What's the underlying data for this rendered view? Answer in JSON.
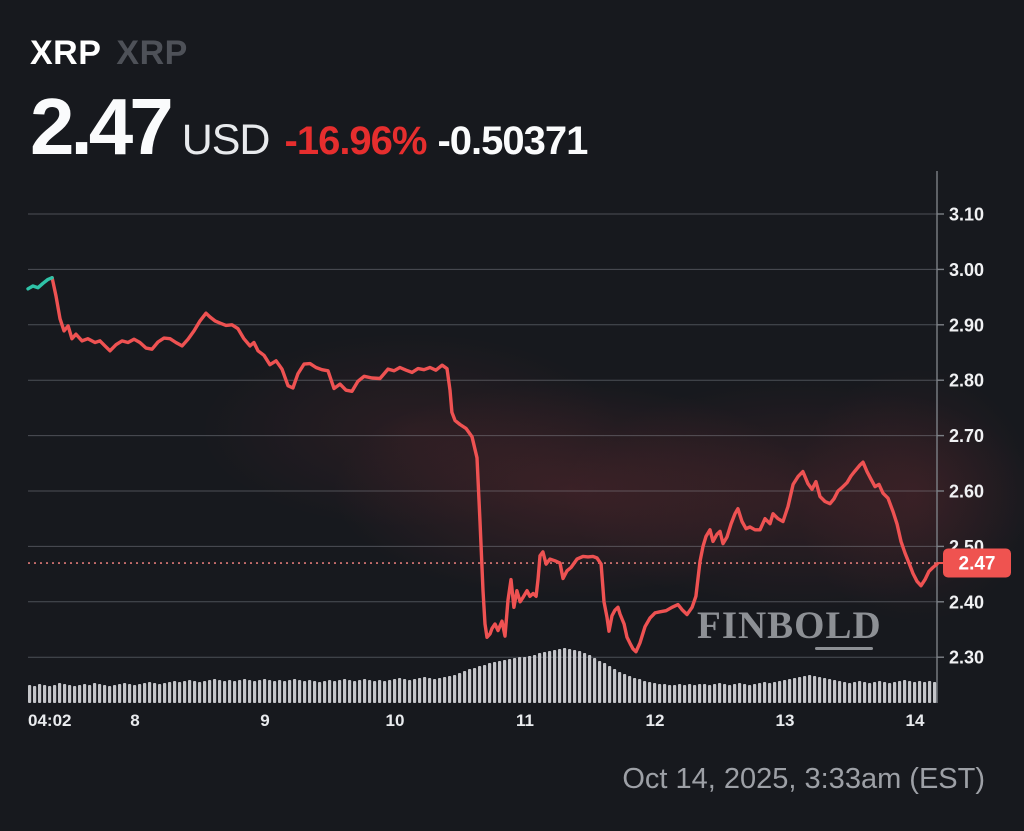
{
  "header": {
    "symbol": "XRP",
    "name": "XRP",
    "price": "2.47",
    "currency": "USD",
    "change_percent": "-16.96%",
    "change_abs": "-0.50371"
  },
  "watermark": {
    "text": "FINBOLD"
  },
  "footer": {
    "timestamp": "Oct 14, 2025, 3:33am (EST)"
  },
  "colors": {
    "background": "#17191e",
    "line_down": "#ee5252",
    "line_up": "#2fc3a8",
    "change_red": "#e62e2e",
    "badge_red": "#ef5350",
    "volume_bar": "#cdcfd3",
    "grid": "#9ea3ab",
    "muted_text": "#9da0a6"
  },
  "chart_data": {
    "type": "line",
    "title": "XRP/USD 7-day price chart",
    "legend": "none",
    "grid": true,
    "x_axis": {
      "unit": "day of October 2025",
      "ticks": [
        {
          "label": "04:02",
          "day": 7.177,
          "anchor": "start"
        },
        {
          "label": "8",
          "day": 8
        },
        {
          "label": "9",
          "day": 9
        },
        {
          "label": "10",
          "day": 10
        },
        {
          "label": "11",
          "day": 11
        },
        {
          "label": "12",
          "day": 12
        },
        {
          "label": "13",
          "day": 13
        },
        {
          "label": "14",
          "day": 14
        }
      ],
      "range_days": [
        7.177,
        14.169
      ]
    },
    "y_axis": {
      "side": "right",
      "ticks": [
        {
          "value": 3.1,
          "label": "3.10"
        },
        {
          "value": 3.0,
          "label": "3.00"
        },
        {
          "value": 2.9,
          "label": "2.90"
        },
        {
          "value": 2.8,
          "label": "2.80"
        },
        {
          "value": 2.7,
          "label": "2.70"
        },
        {
          "value": 2.6,
          "label": "2.60"
        },
        {
          "value": 2.5,
          "label": "2.50"
        },
        {
          "value": 2.4,
          "label": "2.40"
        },
        {
          "value": 2.3,
          "label": "2.30"
        }
      ],
      "range": [
        2.25,
        3.175
      ]
    },
    "current_price": 2.47,
    "current_price_label": "2.47",
    "series": [
      {
        "name": "XRP/USD",
        "up_segment_until_day": 7.362,
        "points": [
          [
            7.177,
            2.965
          ],
          [
            7.215,
            2.97
          ],
          [
            7.254,
            2.967
          ],
          [
            7.292,
            2.975
          ],
          [
            7.331,
            2.982
          ],
          [
            7.362,
            2.985
          ],
          [
            7.392,
            2.952
          ],
          [
            7.423,
            2.911
          ],
          [
            7.454,
            2.889
          ],
          [
            7.485,
            2.898
          ],
          [
            7.515,
            2.875
          ],
          [
            7.546,
            2.883
          ],
          [
            7.592,
            2.871
          ],
          [
            7.638,
            2.875
          ],
          [
            7.692,
            2.868
          ],
          [
            7.731,
            2.871
          ],
          [
            7.769,
            2.862
          ],
          [
            7.808,
            2.853
          ],
          [
            7.854,
            2.864
          ],
          [
            7.9,
            2.871
          ],
          [
            7.946,
            2.868
          ],
          [
            7.992,
            2.874
          ],
          [
            8.038,
            2.868
          ],
          [
            8.085,
            2.858
          ],
          [
            8.131,
            2.856
          ],
          [
            8.177,
            2.869
          ],
          [
            8.223,
            2.876
          ],
          [
            8.269,
            2.875
          ],
          [
            8.315,
            2.868
          ],
          [
            8.362,
            2.862
          ],
          [
            8.408,
            2.874
          ],
          [
            8.454,
            2.889
          ],
          [
            8.5,
            2.907
          ],
          [
            8.546,
            2.921
          ],
          [
            8.577,
            2.914
          ],
          [
            8.615,
            2.907
          ],
          [
            8.654,
            2.903
          ],
          [
            8.7,
            2.899
          ],
          [
            8.746,
            2.9
          ],
          [
            8.792,
            2.893
          ],
          [
            8.838,
            2.875
          ],
          [
            8.885,
            2.862
          ],
          [
            8.915,
            2.868
          ],
          [
            8.946,
            2.853
          ],
          [
            8.992,
            2.845
          ],
          [
            9.038,
            2.828
          ],
          [
            9.085,
            2.835
          ],
          [
            9.131,
            2.82
          ],
          [
            9.177,
            2.79
          ],
          [
            9.215,
            2.786
          ],
          [
            9.254,
            2.812
          ],
          [
            9.3,
            2.829
          ],
          [
            9.346,
            2.83
          ],
          [
            9.392,
            2.823
          ],
          [
            9.438,
            2.819
          ],
          [
            9.485,
            2.817
          ],
          [
            9.531,
            2.785
          ],
          [
            9.577,
            2.793
          ],
          [
            9.623,
            2.782
          ],
          [
            9.669,
            2.78
          ],
          [
            9.715,
            2.798
          ],
          [
            9.762,
            2.807
          ],
          [
            9.823,
            2.804
          ],
          [
            9.885,
            2.803
          ],
          [
            9.946,
            2.82
          ],
          [
            9.992,
            2.817
          ],
          [
            10.038,
            2.823
          ],
          [
            10.085,
            2.818
          ],
          [
            10.131,
            2.814
          ],
          [
            10.177,
            2.821
          ],
          [
            10.223,
            2.819
          ],
          [
            10.269,
            2.823
          ],
          [
            10.315,
            2.818
          ],
          [
            10.362,
            2.827
          ],
          [
            10.4,
            2.821
          ],
          [
            10.423,
            2.782
          ],
          [
            10.438,
            2.742
          ],
          [
            10.462,
            2.727
          ],
          [
            10.5,
            2.72
          ],
          [
            10.546,
            2.713
          ],
          [
            10.592,
            2.698
          ],
          [
            10.631,
            2.66
          ],
          [
            10.654,
            2.545
          ],
          [
            10.677,
            2.42
          ],
          [
            10.692,
            2.36
          ],
          [
            10.708,
            2.336
          ],
          [
            10.731,
            2.342
          ],
          [
            10.746,
            2.352
          ],
          [
            10.769,
            2.36
          ],
          [
            10.792,
            2.348
          ],
          [
            10.823,
            2.365
          ],
          [
            10.846,
            2.338
          ],
          [
            10.869,
            2.403
          ],
          [
            10.892,
            2.44
          ],
          [
            10.915,
            2.39
          ],
          [
            10.938,
            2.42
          ],
          [
            10.962,
            2.4
          ],
          [
            10.985,
            2.408
          ],
          [
            11.015,
            2.42
          ],
          [
            11.038,
            2.41
          ],
          [
            11.062,
            2.415
          ],
          [
            11.085,
            2.41
          ],
          [
            11.1,
            2.44
          ],
          [
            11.115,
            2.483
          ],
          [
            11.138,
            2.49
          ],
          [
            11.162,
            2.468
          ],
          [
            11.192,
            2.477
          ],
          [
            11.231,
            2.474
          ],
          [
            11.269,
            2.47
          ],
          [
            11.292,
            2.442
          ],
          [
            11.323,
            2.456
          ],
          [
            11.354,
            2.462
          ],
          [
            11.4,
            2.477
          ],
          [
            11.446,
            2.482
          ],
          [
            11.485,
            2.481
          ],
          [
            11.523,
            2.482
          ],
          [
            11.554,
            2.479
          ],
          [
            11.585,
            2.468
          ],
          [
            11.608,
            2.4
          ],
          [
            11.631,
            2.372
          ],
          [
            11.646,
            2.347
          ],
          [
            11.669,
            2.375
          ],
          [
            11.692,
            2.385
          ],
          [
            11.715,
            2.39
          ],
          [
            11.731,
            2.378
          ],
          [
            11.762,
            2.36
          ],
          [
            11.785,
            2.336
          ],
          [
            11.808,
            2.325
          ],
          [
            11.831,
            2.315
          ],
          [
            11.854,
            2.31
          ],
          [
            11.885,
            2.326
          ],
          [
            11.923,
            2.355
          ],
          [
            11.962,
            2.371
          ],
          [
            12.0,
            2.38
          ],
          [
            12.038,
            2.382
          ],
          [
            12.085,
            2.384
          ],
          [
            12.131,
            2.39
          ],
          [
            12.177,
            2.395
          ],
          [
            12.208,
            2.386
          ],
          [
            12.246,
            2.377
          ],
          [
            12.285,
            2.39
          ],
          [
            12.315,
            2.41
          ],
          [
            12.346,
            2.473
          ],
          [
            12.369,
            2.5
          ],
          [
            12.392,
            2.518
          ],
          [
            12.423,
            2.53
          ],
          [
            12.446,
            2.509
          ],
          [
            12.477,
            2.522
          ],
          [
            12.5,
            2.527
          ],
          [
            12.523,
            2.505
          ],
          [
            12.554,
            2.517
          ],
          [
            12.585,
            2.541
          ],
          [
            12.615,
            2.559
          ],
          [
            12.638,
            2.568
          ],
          [
            12.669,
            2.545
          ],
          [
            12.7,
            2.532
          ],
          [
            12.731,
            2.535
          ],
          [
            12.769,
            2.53
          ],
          [
            12.808,
            2.53
          ],
          [
            12.846,
            2.55
          ],
          [
            12.885,
            2.541
          ],
          [
            12.908,
            2.559
          ],
          [
            12.946,
            2.55
          ],
          [
            12.985,
            2.545
          ],
          [
            13.023,
            2.572
          ],
          [
            13.062,
            2.612
          ],
          [
            13.1,
            2.626
          ],
          [
            13.138,
            2.635
          ],
          [
            13.177,
            2.613
          ],
          [
            13.208,
            2.603
          ],
          [
            13.238,
            2.617
          ],
          [
            13.269,
            2.59
          ],
          [
            13.308,
            2.581
          ],
          [
            13.346,
            2.577
          ],
          [
            13.377,
            2.586
          ],
          [
            13.408,
            2.6
          ],
          [
            13.438,
            2.606
          ],
          [
            13.477,
            2.615
          ],
          [
            13.508,
            2.627
          ],
          [
            13.538,
            2.636
          ],
          [
            13.577,
            2.647
          ],
          [
            13.6,
            2.652
          ],
          [
            13.631,
            2.635
          ],
          [
            13.662,
            2.621
          ],
          [
            13.692,
            2.608
          ],
          [
            13.723,
            2.612
          ],
          [
            13.754,
            2.596
          ],
          [
            13.792,
            2.587
          ],
          [
            13.831,
            2.563
          ],
          [
            13.862,
            2.54
          ],
          [
            13.892,
            2.509
          ],
          [
            13.923,
            2.488
          ],
          [
            13.954,
            2.47
          ],
          [
            13.985,
            2.451
          ],
          [
            14.015,
            2.437
          ],
          [
            14.046,
            2.429
          ],
          [
            14.077,
            2.44
          ],
          [
            14.108,
            2.455
          ],
          [
            14.138,
            2.462
          ],
          [
            14.169,
            2.468
          ]
        ]
      }
    ],
    "volume": {
      "position": "bottom",
      "values": [
        18,
        17,
        19,
        18,
        17,
        18,
        20,
        19,
        18,
        17,
        18,
        19,
        18,
        20,
        19,
        18,
        17,
        18,
        19,
        20,
        19,
        18,
        19,
        20,
        21,
        20,
        19,
        20,
        21,
        22,
        21,
        22,
        23,
        22,
        21,
        22,
        23,
        24,
        23,
        22,
        23,
        22,
        23,
        24,
        23,
        22,
        23,
        24,
        23,
        22,
        23,
        22,
        23,
        24,
        23,
        22,
        23,
        22,
        21,
        22,
        23,
        22,
        23,
        24,
        23,
        22,
        23,
        24,
        23,
        22,
        23,
        22,
        23,
        24,
        25,
        24,
        23,
        24,
        25,
        26,
        25,
        24,
        25,
        26,
        27,
        28,
        30,
        32,
        34,
        35,
        37,
        38,
        40,
        41,
        42,
        43,
        44,
        45,
        46,
        46,
        47,
        48,
        50,
        51,
        52,
        53,
        54,
        55,
        54,
        53,
        52,
        50,
        48,
        45,
        42,
        40,
        37,
        34,
        31,
        29,
        27,
        25,
        24,
        22,
        21,
        20,
        19,
        19,
        18,
        18,
        19,
        18,
        19,
        18,
        19,
        19,
        18,
        19,
        20,
        19,
        18,
        19,
        20,
        19,
        18,
        19,
        20,
        21,
        20,
        21,
        22,
        23,
        24,
        25,
        26,
        27,
        28,
        27,
        26,
        25,
        24,
        23,
        22,
        21,
        20,
        21,
        22,
        21,
        20,
        21,
        22,
        21,
        20,
        21,
        22,
        23,
        22,
        21,
        22,
        21,
        22,
        21
      ]
    }
  }
}
